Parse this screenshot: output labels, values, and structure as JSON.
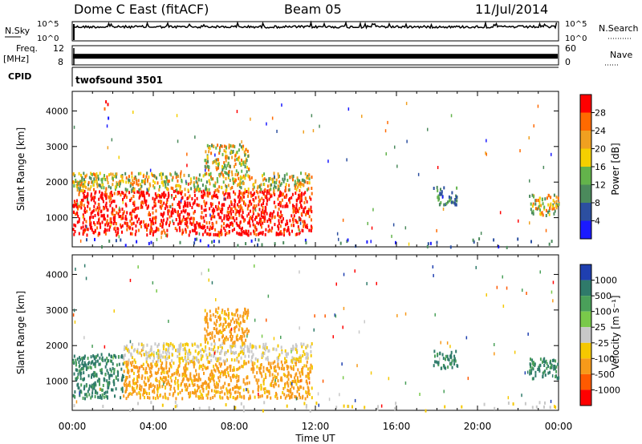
{
  "header": {
    "station": "Dome C East (fitACF)",
    "beam": "Beam 05",
    "date": "11/Jul/2014"
  },
  "labels": {
    "nsky": "N.Sky",
    "freq": "Freq.",
    "freq_unit": "[MHz]",
    "cpid": "CPID",
    "nsearch": "N.Search",
    "nave": "Nave",
    "cpid_value": "twofsound 3501"
  },
  "chart_data": [
    {
      "type": "line",
      "name": "N.Sky / N.Search",
      "y_ticks_left": [
        "10^5",
        "10^0"
      ],
      "y_ticks_right": [
        "10^5",
        "10^0"
      ],
      "note": "dense noise trace near top of strip"
    },
    {
      "type": "line",
      "name": "Freq / Nave",
      "y_ticks_left": [
        "12",
        "8"
      ],
      "y_ticks_right": [
        "60",
        "0"
      ],
      "ylim_left": [
        8,
        12
      ],
      "ylim_right": [
        0,
        60
      ],
      "approx_value_right": 27
    },
    {
      "type": "heatmap",
      "title": "",
      "xlabel": "Time UT",
      "ylabel": "Slant Range [km]",
      "x_ticks": [
        "00:00",
        "04:00",
        "08:00",
        "12:00",
        "16:00",
        "20:00",
        "00:00"
      ],
      "xlim_hours": [
        0,
        24
      ],
      "y_ticks": [
        1000,
        2000,
        3000,
        4000
      ],
      "ylim_km": [
        180,
        4550
      ],
      "colorbar": {
        "label": "Power [dB]",
        "ticks": [
          "4",
          "8",
          "12",
          "16",
          "20",
          "24",
          "28"
        ],
        "colors": [
          "#1a1aff",
          "#2c4fa0",
          "#4b8a5c",
          "#63b34b",
          "#f5d000",
          "#f0a020",
          "#ff6a00",
          "#ff0000"
        ]
      },
      "regions": [
        {
          "t0": 0.0,
          "t1": 11.8,
          "r0": 550,
          "r1": 1800,
          "level": "high"
        },
        {
          "t0": 0.0,
          "t1": 11.8,
          "r0": 1800,
          "r1": 2300,
          "level": "mixed"
        },
        {
          "t0": 6.5,
          "t1": 8.7,
          "r0": 2300,
          "r1": 3100,
          "level": "mixed"
        },
        {
          "t0": 1.5,
          "t1": 2.5,
          "r0": 3800,
          "r1": 4400,
          "level": "sparse"
        },
        {
          "t0": 17.8,
          "t1": 19.0,
          "r0": 1400,
          "r1": 1900,
          "level": "low"
        },
        {
          "t0": 22.5,
          "t1": 24.0,
          "r0": 1100,
          "r1": 1700,
          "level": "mixed"
        },
        {
          "t0": 0.0,
          "t1": 24.0,
          "r0": 200,
          "r1": 450,
          "level": "ground"
        }
      ]
    },
    {
      "type": "heatmap",
      "title": "",
      "xlabel": "Time UT",
      "ylabel": "Slant Range [km]",
      "x_ticks": [
        "00:00",
        "04:00",
        "08:00",
        "12:00",
        "16:00",
        "20:00",
        "00:00"
      ],
      "xlim_hours": [
        0,
        24
      ],
      "y_ticks": [
        1000,
        2000,
        3000,
        4000
      ],
      "ylim_km": [
        180,
        4550
      ],
      "colorbar": {
        "label": "Velocity [m s⁻¹]",
        "ticks": [
          "1000",
          "500",
          "100",
          "25",
          "-25",
          "-100",
          "-500",
          "-1000"
        ],
        "colors": [
          "#1f3fb0",
          "#2f7a6a",
          "#4aa05a",
          "#79c94a",
          "#c8c8c8",
          "#f5c800",
          "#f79a1a",
          "#ff5a00",
          "#ff0000"
        ]
      },
      "regions": [
        {
          "t0": 0.0,
          "t1": 2.5,
          "r0": 550,
          "r1": 1800,
          "level": "green"
        },
        {
          "t0": 2.5,
          "t1": 11.8,
          "r0": 550,
          "r1": 1600,
          "level": "orange"
        },
        {
          "t0": 2.5,
          "t1": 11.8,
          "r0": 1600,
          "r1": 2100,
          "level": "grey"
        },
        {
          "t0": 6.5,
          "t1": 8.7,
          "r0": 2100,
          "r1": 3100,
          "level": "orange"
        },
        {
          "t0": 17.8,
          "t1": 19.0,
          "r0": 1400,
          "r1": 1900,
          "level": "green"
        },
        {
          "t0": 22.5,
          "t1": 24.0,
          "r0": 1100,
          "r1": 1700,
          "level": "green"
        },
        {
          "t0": 0.0,
          "t1": 24.0,
          "r0": 200,
          "r1": 450,
          "level": "ground"
        }
      ]
    }
  ]
}
